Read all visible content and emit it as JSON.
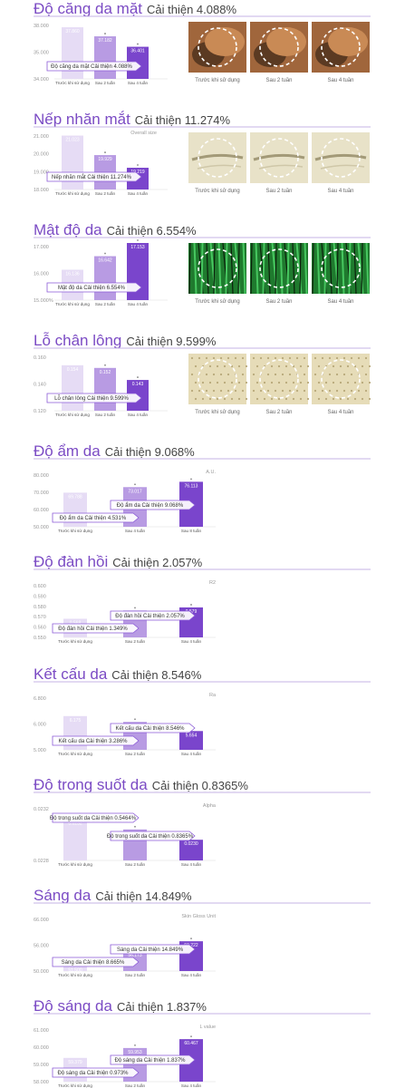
{
  "colors": {
    "title": "#7b4bc4",
    "bar_light": "#e6dcf5",
    "bar_mid": "#b89be3",
    "bar_dark": "#7a45cc",
    "arrow": "#8a5ad6",
    "axis_text": "#999999",
    "rule": "#c5b3e6"
  },
  "chart_data": [
    {
      "type": "bar",
      "title": "Độ căng da mặt",
      "improvement": "Cải thiện 4.088%",
      "categories": [
        "Trước khi sử dụng",
        "Sau 2 tuần",
        "Sau 4 tuần"
      ],
      "values": [
        37.86,
        37.182,
        36.401
      ],
      "value_labels": [
        "37.860",
        "37.182",
        "36.401"
      ],
      "yticks": [
        "38.000",
        "35.000",
        "34.000"
      ],
      "ylim": [
        34.0,
        38.0
      ],
      "unit": "",
      "star": [
        false,
        true,
        true
      ],
      "arrows": [
        {
          "text": "Độ căng da mặt Cải thiện 4.088%",
          "to": 2
        }
      ],
      "photo_labels": [
        "Trước khi sử dụng",
        "Sau 2 tuần",
        "Sau 4 tuần"
      ],
      "photo_style": "face"
    },
    {
      "type": "bar",
      "title": "Nếp nhăn mắt",
      "improvement": "Cải thiện 11.274%",
      "categories": [
        "Trước khi sử dụng",
        "Sau 2 tuần",
        "Sau 4 tuần"
      ],
      "values": [
        21.023,
        19.929,
        19.219
      ],
      "value_labels": [
        "21.023",
        "19.929",
        "19.219"
      ],
      "yticks": [
        "21.000",
        "20.000",
        "19.000",
        "18.000"
      ],
      "ylim": [
        18.0,
        21.0
      ],
      "unit": "Overall size",
      "star": [
        false,
        true,
        true
      ],
      "arrows": [
        {
          "text": "Nếp nhăn mắt Cải thiện 11.274%",
          "to": 2
        }
      ],
      "photo_labels": [
        "Trước khi sử dụng",
        "Sau 2 tuần",
        "Sau 4 tuần"
      ],
      "photo_style": "wrinkle"
    },
    {
      "type": "bar",
      "title": "Mật độ da",
      "improvement": "Cải thiện 6.554%",
      "categories": [
        "Trước khi sử dụng",
        "Sau 2 tuần",
        "Sau 4 tuần"
      ],
      "values": [
        16.136,
        16.642,
        17.153
      ],
      "value_labels": [
        "16.136",
        "16.642",
        "17.153"
      ],
      "yticks": [
        "17.000",
        "16.000",
        "15.000%"
      ],
      "ylim": [
        15.0,
        17.0
      ],
      "unit": "",
      "star": [
        false,
        true,
        true
      ],
      "arrows": [
        {
          "text": "Mật độ da Cải thiện 6.554%",
          "to": 2
        }
      ],
      "photo_labels": [
        "Trước khi sử dụng",
        "Sau 2 tuần",
        "Sau 4 tuần"
      ],
      "photo_style": "density"
    },
    {
      "type": "bar",
      "title": "Lỗ chân lông",
      "improvement": "Cải thiện 9.599%",
      "categories": [
        "Trước khi sử dụng",
        "Sau 2 tuần",
        "Sau 4 tuần"
      ],
      "values": [
        0.154,
        0.152,
        0.143
      ],
      "value_labels": [
        "0.154",
        "0.152",
        "0.143"
      ],
      "yticks": [
        "0.160",
        "0.140",
        "0.120"
      ],
      "ylim": [
        0.12,
        0.16
      ],
      "unit": "",
      "star": [
        false,
        true,
        true
      ],
      "arrows": [
        {
          "text": "Lỗ chân lông Cải thiện 9.599%",
          "to": 2
        }
      ],
      "photo_labels": [
        "Trước khi sử dụng",
        "Sau 2 tuần",
        "Sau 4 tuần"
      ],
      "photo_style": "pore"
    },
    {
      "type": "bar",
      "title": "Độ ẩm da",
      "improvement": "Cải thiện 9.068%",
      "categories": [
        "Trước khi sử dụng",
        "Sau 4 tuần",
        "Sau 8 tuần"
      ],
      "values": [
        69.788,
        73.017,
        76.113
      ],
      "value_labels": [
        "69.788",
        "73.017",
        "76.113"
      ],
      "yticks": [
        "80.000",
        "70.000",
        "60.000",
        "50.000"
      ],
      "ylim": [
        50.0,
        80.0
      ],
      "unit": "A.U.",
      "star": [
        false,
        true,
        true
      ],
      "arrows": [
        {
          "text": "Độ ẩm da Cải thiện 4.531%",
          "to": 1
        },
        {
          "text": "Độ ẩm da Cải thiện 9.068%",
          "to": 2
        }
      ]
    },
    {
      "type": "bar",
      "title": "Độ đàn hồi",
      "improvement": "Cải thiện 2.057%",
      "categories": [
        "Trước khi sử dụng",
        "Sau 2 tuần",
        "Sau 4 tuần"
      ],
      "values": [
        0.568,
        0.576,
        0.579
      ],
      "value_labels": [
        "0.568",
        "0.576",
        "0.579"
      ],
      "yticks": [
        "0.600",
        "0.590",
        "0.580",
        "0.570",
        "0.560",
        "0.550"
      ],
      "ylim": [
        0.55,
        0.6
      ],
      "unit": "R2",
      "star": [
        false,
        true,
        true
      ],
      "arrows": [
        {
          "text": "Độ đàn hồi Cải thiện 1.349%",
          "to": 1
        },
        {
          "text": "Độ đàn hồi Cải thiện 2.057%",
          "to": 2
        }
      ]
    },
    {
      "type": "bar",
      "title": "Kết cấu da",
      "improvement": "Cải thiện 8.546%",
      "categories": [
        "Trước khi sử dụng",
        "Sau 2 tuần",
        "Sau 4 tuần"
      ],
      "values": [
        6.175,
        5.972,
        5.654
      ],
      "value_labels": [
        "6.175",
        "5.972",
        "5.654"
      ],
      "yticks": [
        "6.800",
        "6.000",
        "5.000"
      ],
      "ylim": [
        5.0,
        6.8
      ],
      "unit": "Ra",
      "star": [
        false,
        true,
        true
      ],
      "arrows": [
        {
          "text": "Kết cấu da Cải thiện 3.286%",
          "to": 1
        },
        {
          "text": "Kết cấu da Cải thiện 8.546%",
          "to": 2
        }
      ]
    },
    {
      "type": "bar",
      "title": "Độ trong suốt da",
      "improvement": "Cải thiện 0.8365%",
      "categories": [
        "Trước khi sử dụng",
        "Sau 2 tuần",
        "Sau 4 tuần"
      ],
      "values": [
        0.0232,
        0.0231,
        0.023
      ],
      "value_labels": [
        "0.0232",
        "0.0231",
        "0.0230"
      ],
      "yticks": [
        "0.0232",
        "0.0228"
      ],
      "ylim": [
        0.0228,
        0.0233
      ],
      "unit": "Alpha",
      "star": [
        false,
        true,
        true
      ],
      "arrows": [
        {
          "text": "Độ trong suốt da Cải thiện 0.5464%",
          "to": 1
        },
        {
          "text": "Độ trong suốt da Cải thiện 0.8365%",
          "to": 2
        }
      ]
    },
    {
      "type": "bar",
      "title": "Sáng da",
      "improvement": "Cải thiện 14.849%",
      "categories": [
        "Trước khi sử dụng",
        "Sau 2 tuần",
        "Sau 4 tuần"
      ],
      "values": [
        51.5,
        56.173,
        59.222
      ],
      "value_labels": [
        "51.500",
        "56.173",
        "59.222"
      ],
      "yticks": [
        "66.000",
        "56.000",
        "50.000"
      ],
      "ylim": [
        50.0,
        66.0
      ],
      "unit": "Skin Gloss Unit",
      "star": [
        false,
        true,
        true
      ],
      "arrows": [
        {
          "text": "Sáng da Cải thiện 8.665%",
          "to": 1
        },
        {
          "text": "Sáng da Cải thiện 14.849%",
          "to": 2
        }
      ]
    },
    {
      "type": "bar",
      "title": "Độ sáng da",
      "improvement": "Cải thiện 1.837%",
      "categories": [
        "Trước khi sử dụng",
        "Sau 2 tuần",
        "Sau 4 tuần"
      ],
      "values": [
        59.379,
        59.953,
        60.467
      ],
      "value_labels": [
        "59.379",
        "59.953",
        "60.467"
      ],
      "yticks": [
        "61.000",
        "60.000",
        "59.000",
        "58.000"
      ],
      "ylim": [
        58.0,
        61.0
      ],
      "unit": "L value",
      "star": [
        false,
        true,
        true
      ],
      "arrows": [
        {
          "text": "Độ sáng da Cải thiện 0.973%",
          "to": 1
        },
        {
          "text": "Độ sáng da Cải thiện 1.837%",
          "to": 2
        }
      ]
    }
  ]
}
